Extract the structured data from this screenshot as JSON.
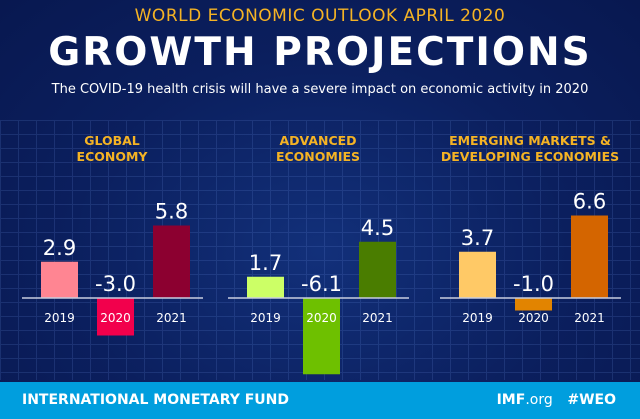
{
  "header": {
    "supertitle": "WORLD ECONOMIC OUTLOOK  APRIL 2020",
    "title": "GROWTH PROJECTIONS",
    "subtitle": "The COVID-19 health crisis will have a severe impact on economic activity in 2020"
  },
  "chart_data": [
    {
      "type": "bar",
      "title": "GLOBAL ECONOMY",
      "title_lines": [
        "GLOBAL",
        "ECONOMY"
      ],
      "categories": [
        "2019",
        "2020",
        "2021"
      ],
      "values": [
        2.9,
        -3.0,
        5.8
      ],
      "labels": [
        "2.9",
        "-3.0",
        "5.8"
      ],
      "colors": [
        "#ff8592",
        "#f2004c",
        "#8c0030"
      ]
    },
    {
      "type": "bar",
      "title": "ADVANCED ECONOMIES",
      "title_lines": [
        "ADVANCED",
        "ECONOMIES"
      ],
      "categories": [
        "2019",
        "2020",
        "2021"
      ],
      "values": [
        1.7,
        -6.1,
        4.5
      ],
      "labels": [
        "1.7",
        "-6.1",
        "4.5"
      ],
      "colors": [
        "#ccff66",
        "#6ec000",
        "#4a7d00"
      ]
    },
    {
      "type": "bar",
      "title": "EMERGING MARKETS & DEVELOPING ECONOMIES",
      "title_lines": [
        "EMERGING MARKETS &",
        "DEVELOPING ECONOMIES"
      ],
      "categories": [
        "2019",
        "2020",
        "2021"
      ],
      "values": [
        3.7,
        -1.0,
        6.6
      ],
      "labels": [
        "3.7",
        "-1.0",
        "6.6"
      ],
      "colors": [
        "#ffc966",
        "#e28400",
        "#d46500"
      ]
    }
  ],
  "colors": {
    "title_accent": "#f5b324",
    "background": "#0b1f5e",
    "footer": "#009ede"
  },
  "footer": {
    "org": "INTERNATIONAL MONETARY FUND",
    "site_bold": "IMF",
    "site_rest": ".org",
    "hashtag": "#WEO"
  }
}
